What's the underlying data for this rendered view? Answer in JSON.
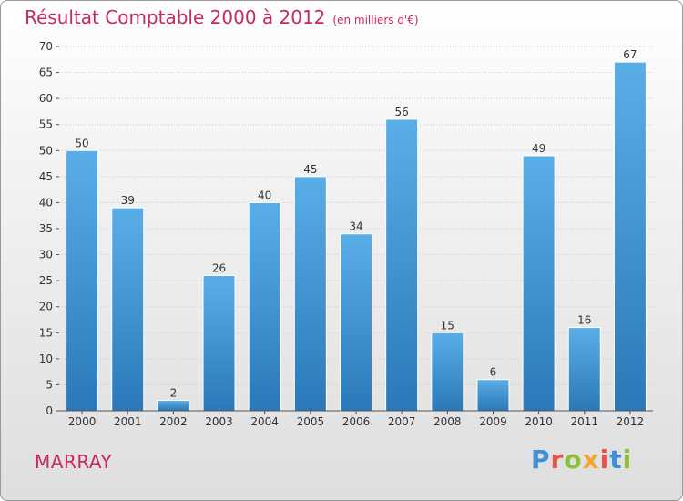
{
  "header": {
    "title": "Résultat Comptable 2000 à 2012",
    "subtitle": "(en milliers d'€)"
  },
  "footer": {
    "commune": "MARRAY",
    "brand_letters": [
      "P",
      "r",
      "o",
      "x",
      "i",
      "t",
      "i"
    ]
  },
  "colors": {
    "bar_top": "#5aaee8",
    "bar_bottom": "#2a78b8",
    "title": "#c8285e"
  },
  "chart_data": {
    "type": "bar",
    "title": "Résultat Comptable 2000 à 2012",
    "subtitle": "(en milliers d'€)",
    "xlabel": "",
    "ylabel": "",
    "categories": [
      "2000",
      "2001",
      "2002",
      "2003",
      "2004",
      "2005",
      "2006",
      "2007",
      "2008",
      "2009",
      "2010",
      "2011",
      "2012"
    ],
    "values": [
      50,
      39,
      2,
      26,
      40,
      45,
      34,
      56,
      15,
      6,
      49,
      16,
      67
    ],
    "ylim": [
      0,
      70
    ],
    "yticks": [
      0,
      5,
      10,
      15,
      20,
      25,
      30,
      35,
      40,
      45,
      50,
      55,
      60,
      65,
      70
    ],
    "grid": true
  }
}
